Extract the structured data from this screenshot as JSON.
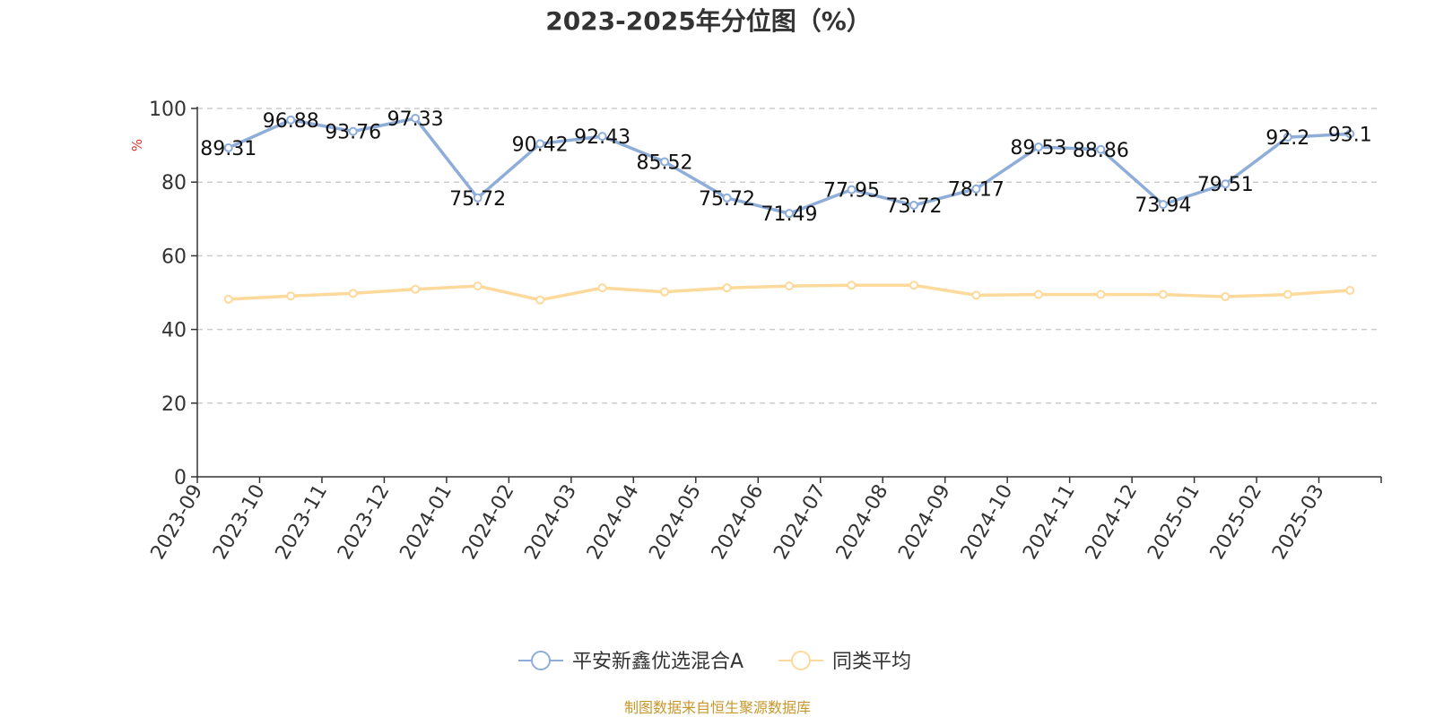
{
  "title": "2023-2025年分位图（%）",
  "y_unit": "%",
  "source_text": "制图数据来自恒生聚源数据库",
  "colors": {
    "series_main": "#8fadd9",
    "series_avg": "#fdd99b",
    "unit": "#e0322a",
    "source": "#c6972a",
    "grid": "#cccccc",
    "axis": "#333333"
  },
  "legend": {
    "items": [
      {
        "label": "平安新鑫优选混合A",
        "icon": "circle-line-icon"
      },
      {
        "label": "同类平均",
        "icon": "circle-line-icon"
      }
    ],
    "placement": "bottom-center"
  },
  "chart_data": {
    "type": "line",
    "title": "2023-2025年分位图（%）",
    "ylabel": "%",
    "ylim": [
      0,
      100
    ],
    "yticks": [
      0,
      20,
      40,
      60,
      80,
      100
    ],
    "grid": true,
    "categories": [
      "2023-09",
      "2023-10",
      "2023-11",
      "2023-12",
      "2024-01",
      "2024-02",
      "2024-03",
      "2024-04",
      "2024-05",
      "2024-06",
      "2024-07",
      "2024-08",
      "2024-09",
      "2024-10",
      "2024-11",
      "2024-12",
      "2025-01",
      "2025-02",
      "2025-03"
    ],
    "series": [
      {
        "name": "平安新鑫优选混合A",
        "values": [
          89.31,
          96.88,
          93.76,
          97.33,
          75.72,
          90.42,
          92.43,
          85.52,
          75.72,
          71.49,
          77.95,
          73.72,
          78.17,
          89.53,
          88.86,
          73.94,
          79.51,
          92.2,
          93.1
        ],
        "labels": [
          "89.31",
          "96.88",
          "93.76",
          "97.33",
          "75.72",
          "90.42",
          "92.43",
          "85.52",
          "75.72",
          "71.49",
          "77.95",
          "73.72",
          "78.17",
          "89.53",
          "88.86",
          "73.94",
          "79.51",
          "92.2",
          "93.1"
        ]
      },
      {
        "name": "同类平均",
        "values": [
          48.2,
          49.1,
          49.8,
          50.9,
          51.8,
          48.0,
          51.3,
          50.2,
          51.3,
          51.8,
          52.0,
          52.0,
          49.3,
          49.5,
          49.5,
          49.5,
          48.9,
          49.5,
          50.6
        ]
      }
    ]
  }
}
